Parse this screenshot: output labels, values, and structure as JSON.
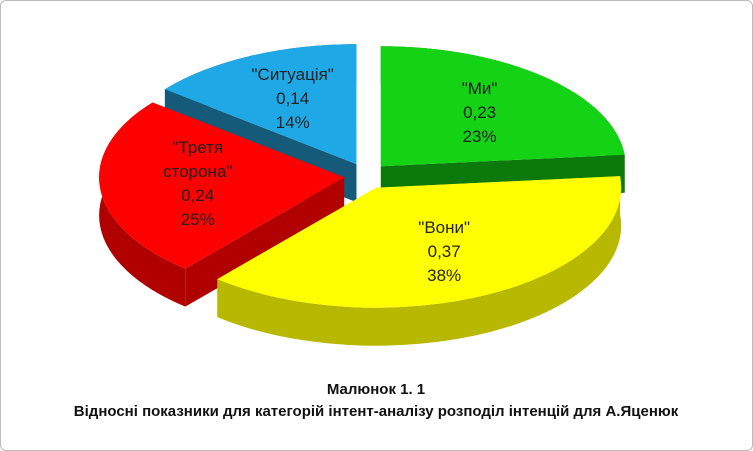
{
  "chart_data": {
    "type": "pie3d",
    "categories": [
      "\"Ми\"",
      "\"Вони\"",
      "\"Третя сторона\"",
      "\"Ситуація\""
    ],
    "values": [
      0.23,
      0.37,
      0.24,
      0.14
    ],
    "value_labels": [
      "0,23",
      "0,37",
      "0,24",
      "0,14"
    ],
    "percentages": [
      23,
      38,
      25,
      14
    ],
    "percent_labels": [
      "23%",
      "38%",
      "25%",
      "14%"
    ],
    "colors": [
      "#14d214",
      "#ffff00",
      "#ff0000",
      "#1ea9e6"
    ],
    "side_colors": [
      "#0b7a0b",
      "#b8b800",
      "#b00000",
      "#155a78"
    ],
    "caption": "Малюнок 1. 1",
    "subcaption": "Відносні показники для категорій інтент-аналізу розподіл інтенцій для А.Яценюк"
  }
}
